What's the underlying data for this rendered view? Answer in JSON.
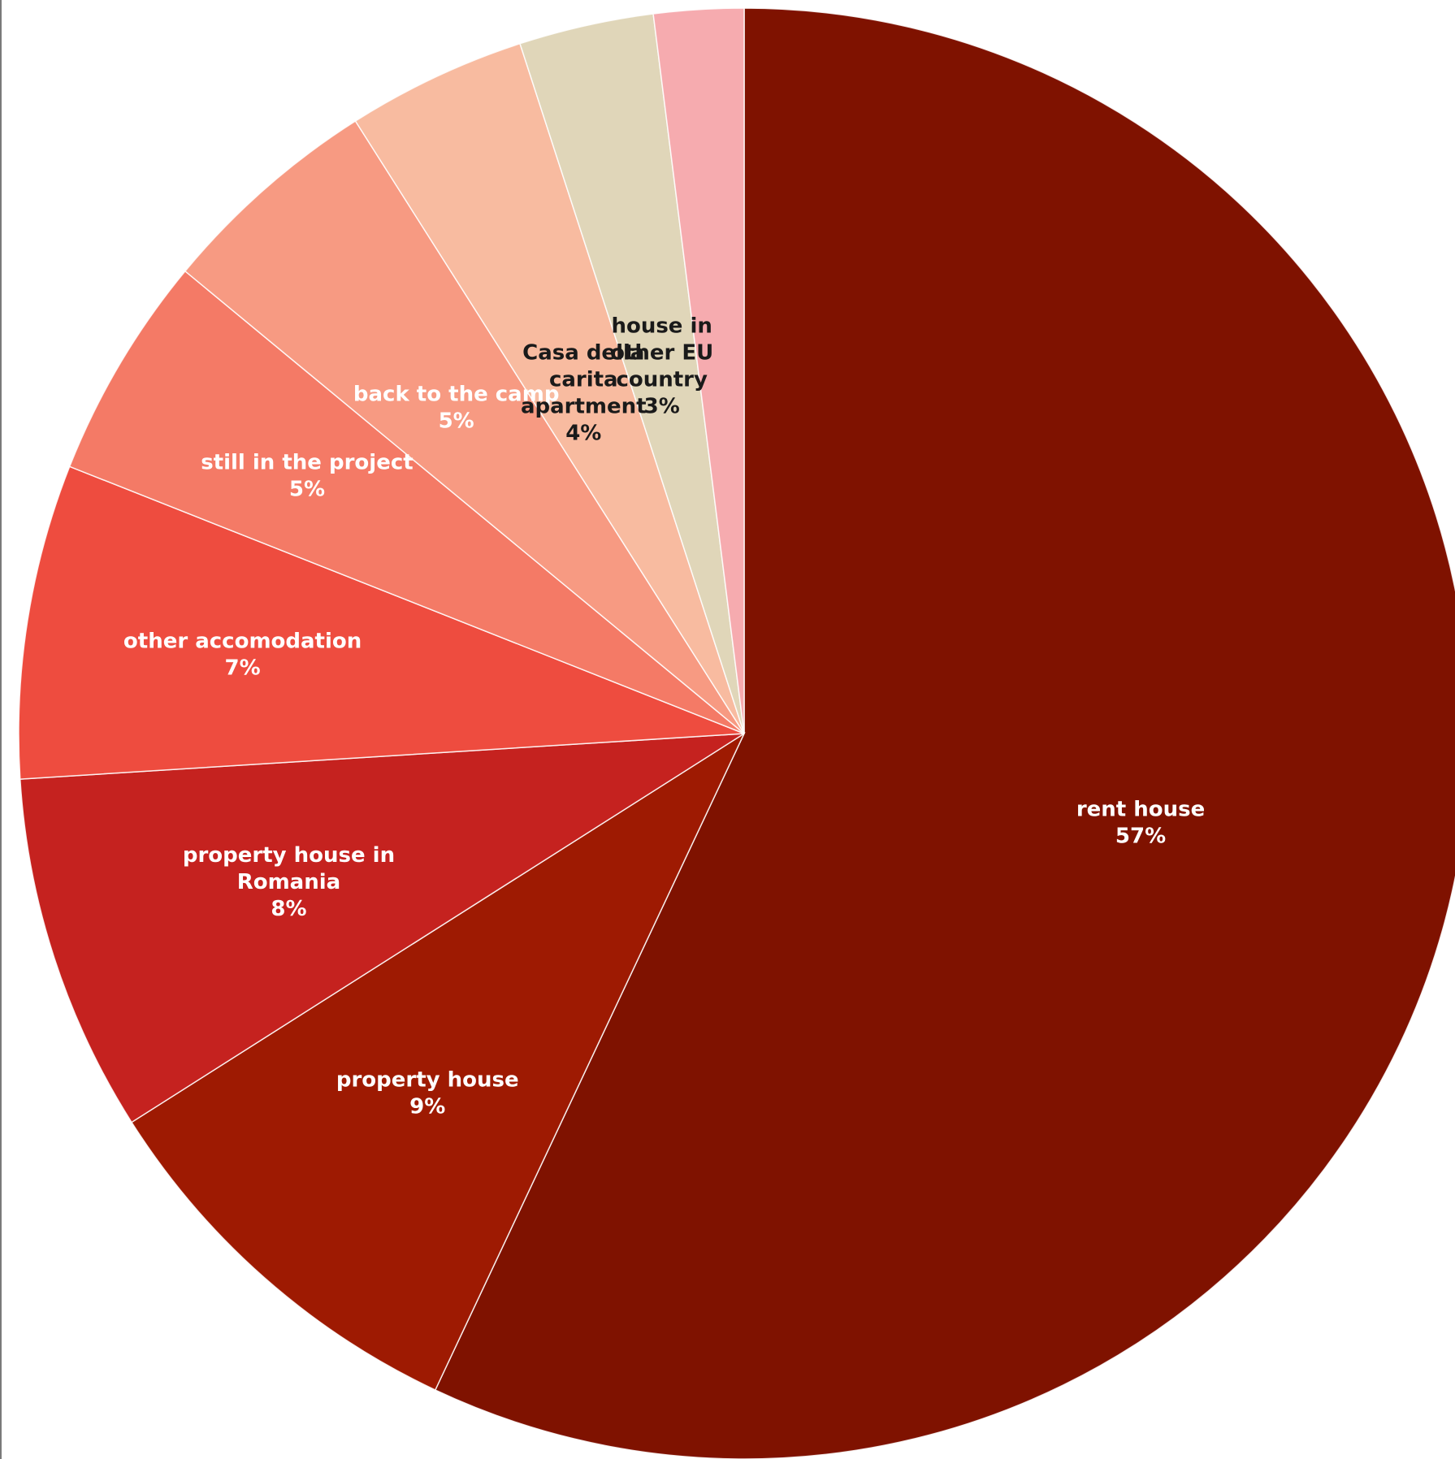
{
  "chart_data": {
    "type": "pie",
    "title": "",
    "start": "12 o'clock",
    "direction": "clockwise",
    "slices": [
      {
        "label": [
          "rent house"
        ],
        "value": 57,
        "value_label": "57%",
        "color": "#7f1200",
        "label_color": "#ffffff"
      },
      {
        "label": [
          "property house"
        ],
        "value": 9,
        "value_label": "9%",
        "color": "#9e1a02",
        "label_color": "#ffffff"
      },
      {
        "label": [
          "property house in",
          "Romania"
        ],
        "value": 8,
        "value_label": "8%",
        "color": "#c5221f",
        "label_color": "#ffffff"
      },
      {
        "label": [
          "other accomodation"
        ],
        "value": 7,
        "value_label": "7%",
        "color": "#ee4c3f",
        "label_color": "#ffffff"
      },
      {
        "label": [
          "still in the project"
        ],
        "value": 5,
        "value_label": "5%",
        "color": "#f47a66",
        "label_color": "#ffffff"
      },
      {
        "label": [
          "back to the camp"
        ],
        "value": 5,
        "value_label": "5%",
        "color": "#f79a82",
        "label_color": "#ffffff"
      },
      {
        "label": [
          "Casa della",
          "carita",
          "apartment"
        ],
        "value": 4,
        "value_label": "4%",
        "color": "#f8bba0",
        "label_color": "#1a1a1a"
      },
      {
        "label": [
          "house in",
          "other EU",
          "country"
        ],
        "value": 3,
        "value_label": "3%",
        "color": "#e0d6b9",
        "label_color": "#1a1a1a"
      },
      {
        "label": [],
        "value": 2,
        "value_label": "",
        "color": "#f6abaf",
        "label_color": "#1a1a1a"
      }
    ]
  }
}
